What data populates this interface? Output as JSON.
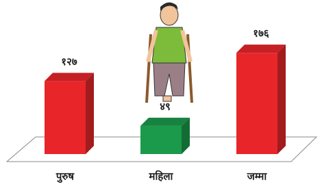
{
  "chart_data": {
    "type": "bar3d",
    "categories": [
      "पुरुष",
      "महिला",
      "जम्मा"
    ],
    "values": [
      127,
      49,
      176
    ],
    "value_labels": [
      "१२७",
      "४९",
      "१७६"
    ],
    "colors": [
      "#e8262a",
      "#1c9a4c",
      "#e8262a"
    ]
  }
}
